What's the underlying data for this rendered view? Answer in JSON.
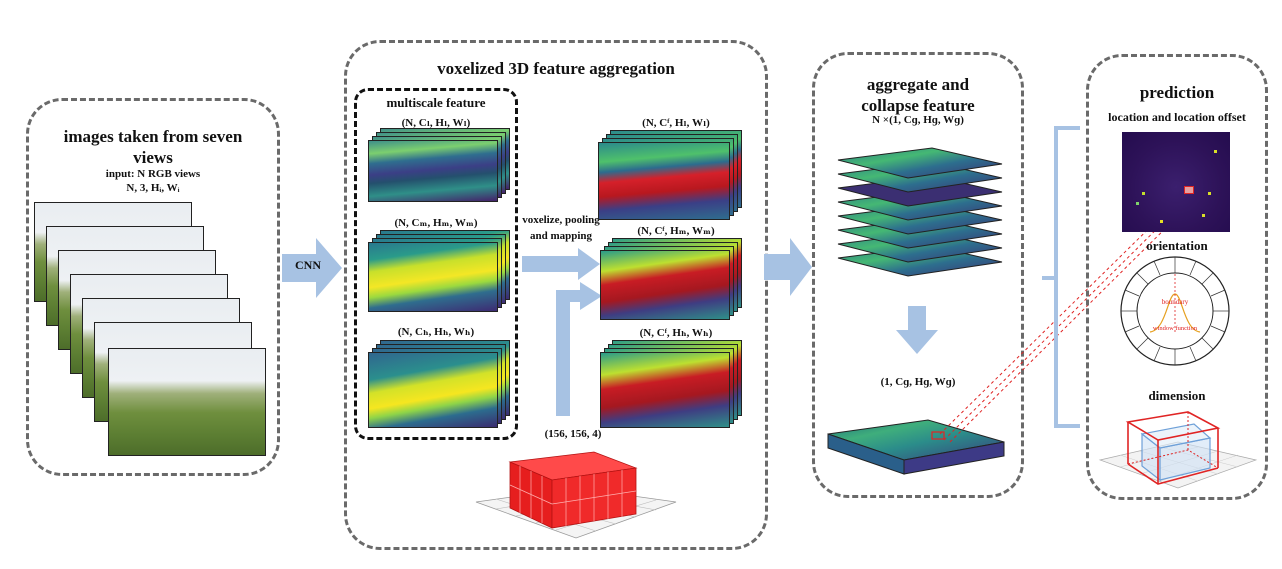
{
  "panels": {
    "input": {
      "title": "images taken from seven views",
      "input_line": "input: N RGB views",
      "shape_line": "N, 3, Hᵢ, Wᵢ"
    },
    "aggregation": {
      "title": "voxelized 3D feature aggregation",
      "multiscale_title": "multiscale feature",
      "scale_low": "(N, Cₗ, Hₗ, Wₗ)",
      "scale_mid": "(N, Cₘ, Hₘ, Wₘ)",
      "scale_high": "(N, Cₕ, Hₕ, Wₕ)",
      "out_low": "(N, Cᶠ, Hₗ, Wₗ)",
      "out_mid": "(N, Cᶠ, Hₘ, Wₘ)",
      "out_high": "(N, Cᶠ, Hₕ, Wₕ)",
      "voxel_label": "(156, 156, 4)",
      "voxelize_text": "voxelize, pooling and mapping"
    },
    "collapse": {
      "title": "aggregate and collapse feature",
      "shape_in": "N ×(1, Cɡ, Hɡ, Wɡ)",
      "shape_out": "(1, Cɡ, Hɡ, Wɡ)"
    },
    "prediction": {
      "title": "prediction",
      "location": "location and location offset",
      "orientation": "orientation",
      "boundary": "boundary",
      "window_function": "window function",
      "dimension": "dimension"
    }
  },
  "arrows": {
    "cnn": "CNN"
  },
  "colors": {
    "border": "#6a6a6a",
    "arrow": "#a7c2e3",
    "voxel": "#e61e1e",
    "accent_red": "#e02424"
  },
  "icons": [
    "block-arrow-icon",
    "voxel-grid-icon",
    "orientation-wheel-icon",
    "bounding-box-icon"
  ]
}
